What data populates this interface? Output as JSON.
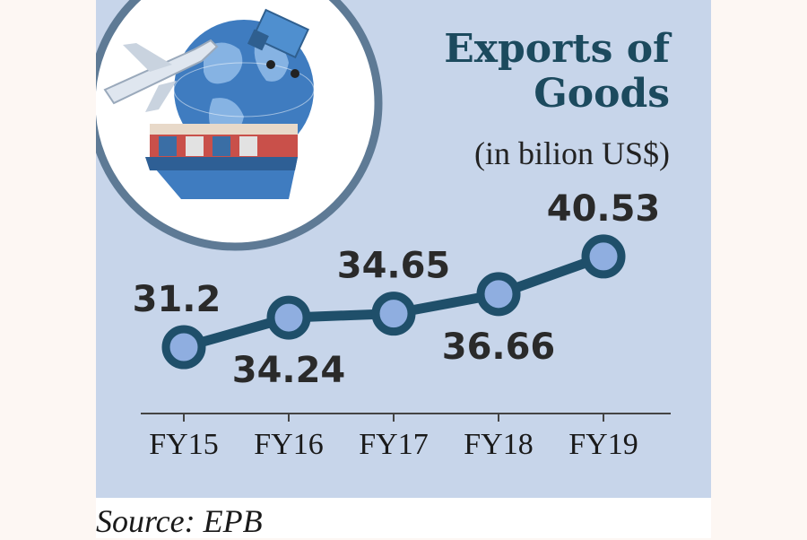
{
  "header": {
    "title_line1": "Exports of",
    "title_line2": "Goods",
    "subtitle": "(in bilion US$)"
  },
  "footer": {
    "source": "Source: EPB"
  },
  "colors": {
    "panel_bg": "#c7d5ea",
    "line": "#1f4f6a",
    "marker_fill": "#8faee0",
    "title": "#1c4a5e"
  },
  "icons": [
    "globe-icon",
    "airplane-icon",
    "truck-icon",
    "cargo-ship-icon"
  ],
  "chart_data": {
    "type": "line",
    "title": "Exports of Goods",
    "subtitle": "(in bilion US$)",
    "categories": [
      "FY15",
      "FY16",
      "FY17",
      "FY18",
      "FY19"
    ],
    "series": [
      {
        "values": [
          31.2,
          34.24,
          34.65,
          36.66,
          40.53
        ]
      }
    ],
    "data_labels": [
      "31.2",
      "34.24",
      "34.65",
      "36.66",
      "40.53"
    ],
    "label_position": [
      "above",
      "below",
      "above",
      "below",
      "above"
    ],
    "grid": false,
    "legend": "none"
  }
}
